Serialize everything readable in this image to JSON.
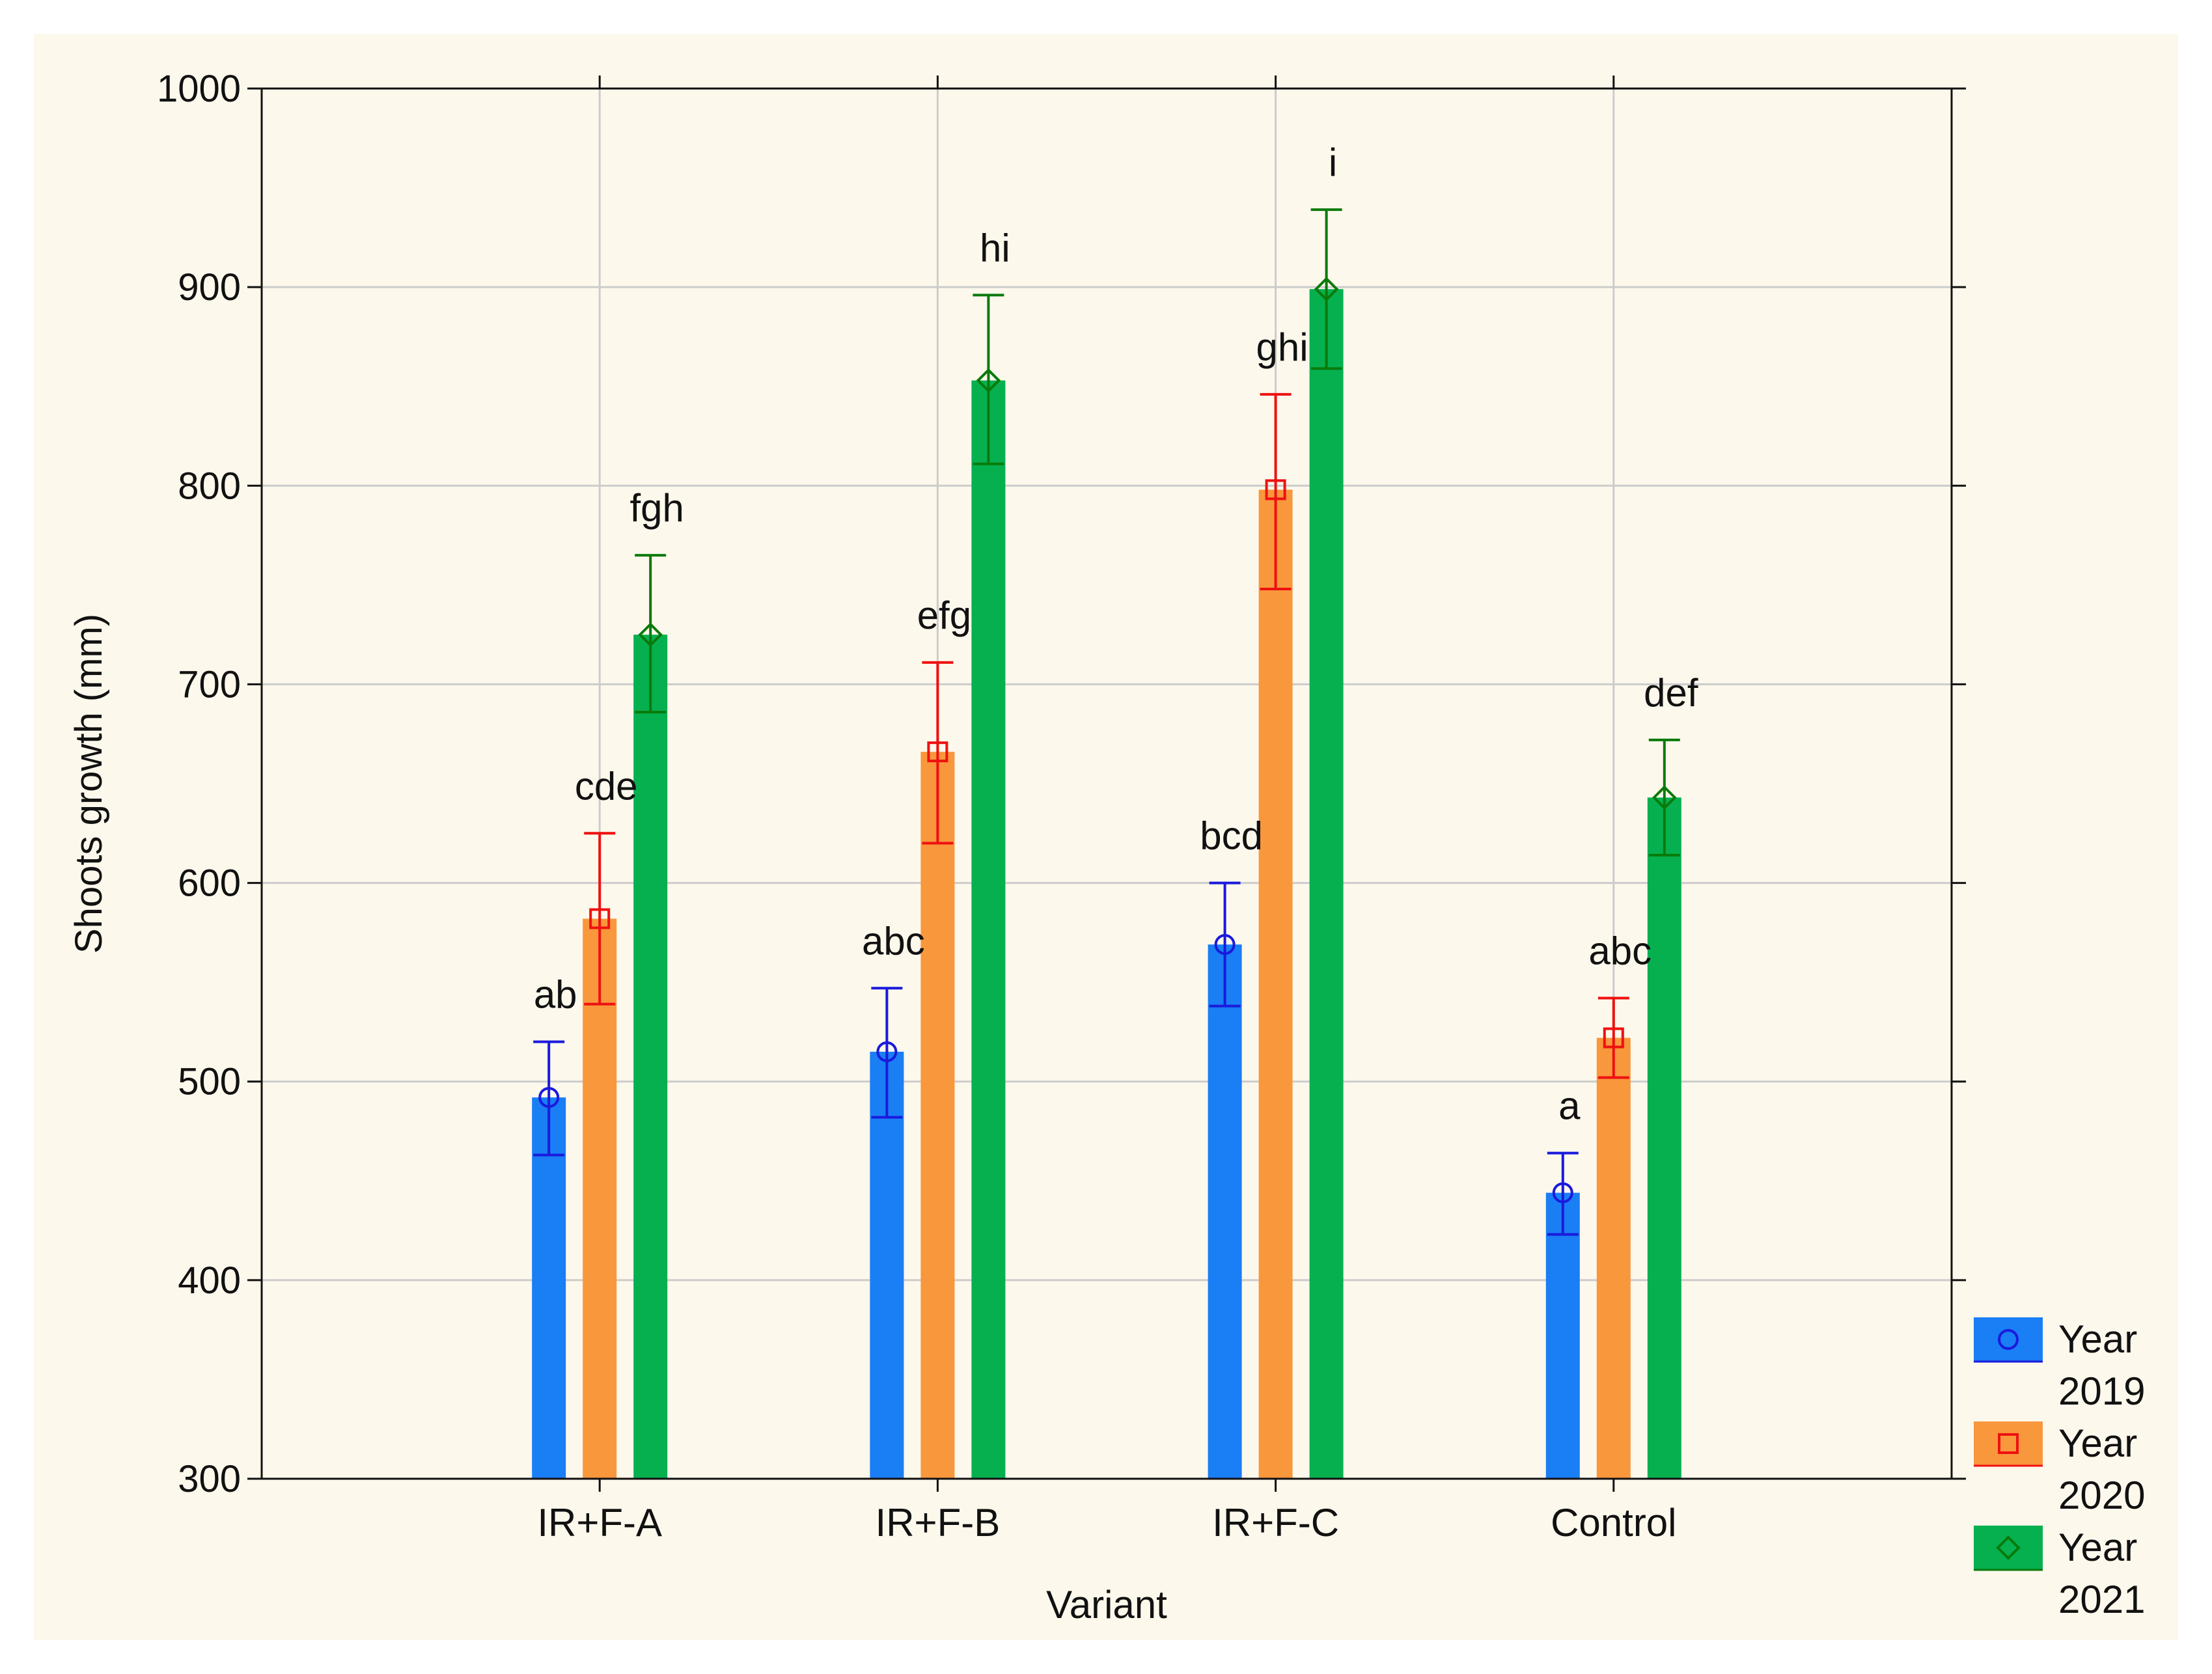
{
  "chart_data": {
    "type": "bar",
    "title": "",
    "xlabel": "Variant",
    "ylabel": "Shoots growth (mm)",
    "ylim": [
      300,
      1000
    ],
    "yticks": [
      300,
      400,
      500,
      600,
      700,
      800,
      900,
      1000
    ],
    "grid": true,
    "legend_position": "right-bottom",
    "categories": [
      "IR+F-A",
      "IR+F-B",
      "IR+F-C",
      "Control"
    ],
    "series": [
      {
        "name": "Year 2019",
        "legend_lines": [
          "Year",
          "2019"
        ],
        "bar_color": "#1a7ef5",
        "marker_color": "#1a1adc",
        "marker": "circle",
        "values": [
          492,
          515,
          569,
          444
        ],
        "err_low": [
          463,
          482,
          538,
          423
        ],
        "err_high": [
          520,
          547,
          600,
          464
        ],
        "letters": [
          "ab",
          "abc",
          "bcd",
          "a"
        ]
      },
      {
        "name": "Year 2020",
        "legend_lines": [
          "Year",
          "2020"
        ],
        "bar_color": "#f9973c",
        "marker_color": "#ee1111",
        "marker": "square",
        "values": [
          582,
          666,
          798,
          522
        ],
        "err_low": [
          539,
          620,
          748,
          502
        ],
        "err_high": [
          625,
          711,
          846,
          542
        ],
        "letters": [
          "cde",
          "efg",
          "ghi",
          "abc"
        ]
      },
      {
        "name": "Year 2021",
        "legend_lines": [
          "Year",
          "2021"
        ],
        "bar_color": "#06b04f",
        "marker_color": "#0a7a0a",
        "marker": "diamond",
        "values": [
          725,
          853,
          899,
          643
        ],
        "err_low": [
          686,
          811,
          859,
          614
        ],
        "err_high": [
          765,
          896,
          939,
          672
        ],
        "letters": [
          "fgh",
          "hi",
          "i",
          "def"
        ]
      }
    ]
  }
}
